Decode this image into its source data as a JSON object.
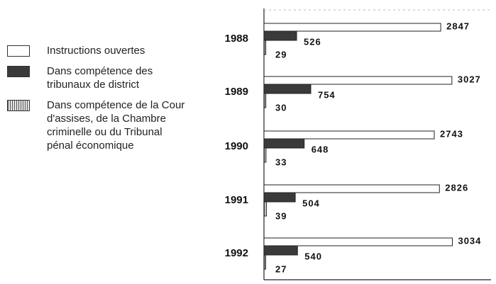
{
  "chart_data": {
    "type": "bar",
    "orientation": "horizontal",
    "categories": [
      "1988",
      "1989",
      "1990",
      "1991",
      "1992"
    ],
    "series": [
      {
        "name": "Instructions ouvertes",
        "color": "#ffffff",
        "values": [
          2847,
          3027,
          2743,
          2826,
          3034
        ]
      },
      {
        "name": "Dans compétence des tribunaux de district",
        "color": "#3a3a3a",
        "values": [
          526,
          754,
          648,
          504,
          540
        ]
      },
      {
        "name": "Dans compétence de la Cour d'assises, de la Chambre criminelle ou du Tribunal pénal économique",
        "color": "#d8d8d8",
        "values": [
          29,
          30,
          33,
          39,
          27
        ]
      }
    ],
    "xlim": [
      0,
      3600
    ]
  }
}
